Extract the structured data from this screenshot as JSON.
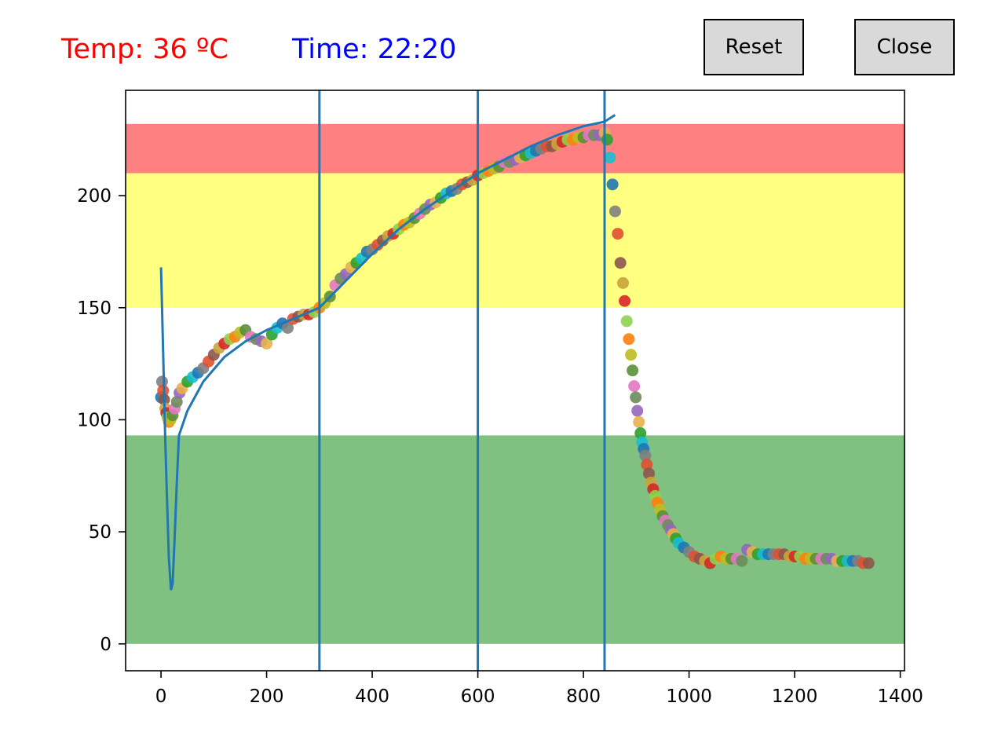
{
  "header": {
    "temp_label": "Temp: 36 ºC",
    "time_label": "Time: 22:20",
    "reset_label": "Reset",
    "close_label": "Close"
  },
  "colors": {
    "temp_text": "#ff0000",
    "time_text": "#0000ff",
    "band_red": "#ff8080",
    "band_yellow": "#ffff80",
    "band_green": "#80c080",
    "line": "#1f77b4"
  },
  "chart_data": {
    "type": "scatter",
    "title": "",
    "xlabel": "",
    "ylabel": "",
    "xlim": [
      -67,
      1408
    ],
    "ylim": [
      -12,
      247
    ],
    "xticks": [
      0,
      200,
      400,
      600,
      800,
      1000,
      1200,
      1400
    ],
    "yticks": [
      0,
      50,
      100,
      150,
      200
    ],
    "grid": false,
    "bands": [
      {
        "name": "red",
        "y0": 210,
        "y1": 232,
        "color": "#ff8080"
      },
      {
        "name": "yellow",
        "y0": 150,
        "y1": 210,
        "color": "#ffff80"
      },
      {
        "name": "green",
        "y0": 0,
        "y1": 93,
        "color": "#80c080"
      }
    ],
    "vlines": [
      300,
      600,
      840
    ],
    "profile_line": [
      [
        0,
        168
      ],
      [
        4,
        130
      ],
      [
        8,
        92
      ],
      [
        12,
        60
      ],
      [
        15,
        38
      ],
      [
        19,
        24
      ],
      [
        22,
        27
      ],
      [
        26,
        48
      ],
      [
        30,
        72
      ],
      [
        34,
        93
      ],
      [
        50,
        104
      ],
      [
        80,
        117
      ],
      [
        120,
        128
      ],
      [
        160,
        135
      ],
      [
        200,
        140
      ],
      [
        250,
        145
      ],
      [
        300,
        150
      ],
      [
        350,
        162
      ],
      [
        400,
        174
      ],
      [
        450,
        185
      ],
      [
        500,
        194
      ],
      [
        550,
        202
      ],
      [
        600,
        210
      ],
      [
        650,
        216
      ],
      [
        700,
        222
      ],
      [
        750,
        227
      ],
      [
        800,
        231
      ],
      [
        840,
        233
      ],
      [
        860,
        236
      ]
    ],
    "scatter_points": [
      [
        0,
        110
      ],
      [
        2,
        117
      ],
      [
        4,
        113
      ],
      [
        6,
        109
      ],
      [
        8,
        105
      ],
      [
        10,
        103
      ],
      [
        12,
        101
      ],
      [
        15,
        99
      ],
      [
        18,
        100
      ],
      [
        22,
        102
      ],
      [
        26,
        105
      ],
      [
        30,
        108
      ],
      [
        35,
        112
      ],
      [
        40,
        114
      ],
      [
        50,
        117
      ],
      [
        60,
        119
      ],
      [
        70,
        121
      ],
      [
        80,
        123
      ],
      [
        90,
        126
      ],
      [
        100,
        129
      ],
      [
        110,
        132
      ],
      [
        120,
        134
      ],
      [
        130,
        136
      ],
      [
        140,
        137
      ],
      [
        150,
        139
      ],
      [
        160,
        140
      ],
      [
        170,
        137
      ],
      [
        180,
        136
      ],
      [
        190,
        135
      ],
      [
        200,
        134
      ],
      [
        210,
        138
      ],
      [
        220,
        141
      ],
      [
        230,
        143
      ],
      [
        240,
        141
      ],
      [
        250,
        145
      ],
      [
        260,
        146
      ],
      [
        270,
        147
      ],
      [
        280,
        147
      ],
      [
        290,
        148
      ],
      [
        300,
        150
      ],
      [
        310,
        152
      ],
      [
        320,
        155
      ],
      [
        330,
        160
      ],
      [
        340,
        163
      ],
      [
        350,
        165
      ],
      [
        360,
        168
      ],
      [
        370,
        170
      ],
      [
        380,
        172
      ],
      [
        390,
        175
      ],
      [
        400,
        176
      ],
      [
        410,
        178
      ],
      [
        420,
        180
      ],
      [
        430,
        182
      ],
      [
        440,
        183
      ],
      [
        450,
        185
      ],
      [
        460,
        187
      ],
      [
        470,
        188
      ],
      [
        480,
        190
      ],
      [
        490,
        192
      ],
      [
        500,
        194
      ],
      [
        510,
        196
      ],
      [
        520,
        197
      ],
      [
        530,
        199
      ],
      [
        540,
        201
      ],
      [
        550,
        202
      ],
      [
        560,
        203
      ],
      [
        570,
        205
      ],
      [
        580,
        206
      ],
      [
        590,
        207
      ],
      [
        600,
        209
      ],
      [
        610,
        210
      ],
      [
        620,
        211
      ],
      [
        630,
        212
      ],
      [
        640,
        213
      ],
      [
        650,
        215
      ],
      [
        660,
        215
      ],
      [
        670,
        216
      ],
      [
        680,
        217
      ],
      [
        690,
        218
      ],
      [
        700,
        219
      ],
      [
        710,
        220
      ],
      [
        720,
        221
      ],
      [
        730,
        222
      ],
      [
        740,
        222
      ],
      [
        750,
        223
      ],
      [
        760,
        224
      ],
      [
        770,
        225
      ],
      [
        780,
        225
      ],
      [
        790,
        226
      ],
      [
        800,
        226
      ],
      [
        810,
        227
      ],
      [
        820,
        227
      ],
      [
        830,
        227
      ],
      [
        840,
        228
      ],
      [
        845,
        225
      ],
      [
        850,
        217
      ],
      [
        855,
        205
      ],
      [
        860,
        193
      ],
      [
        865,
        183
      ],
      [
        870,
        170
      ],
      [
        875,
        161
      ],
      [
        878,
        153
      ],
      [
        882,
        144
      ],
      [
        886,
        136
      ],
      [
        890,
        129
      ],
      [
        893,
        122
      ],
      [
        896,
        115
      ],
      [
        899,
        110
      ],
      [
        902,
        104
      ],
      [
        905,
        99
      ],
      [
        908,
        94
      ],
      [
        911,
        90
      ],
      [
        914,
        87
      ],
      [
        917,
        84
      ],
      [
        920,
        80
      ],
      [
        924,
        76
      ],
      [
        928,
        72
      ],
      [
        932,
        69
      ],
      [
        936,
        66
      ],
      [
        940,
        63
      ],
      [
        945,
        60
      ],
      [
        950,
        57
      ],
      [
        955,
        55
      ],
      [
        960,
        53
      ],
      [
        965,
        51
      ],
      [
        970,
        49
      ],
      [
        975,
        47
      ],
      [
        980,
        45
      ],
      [
        990,
        43
      ],
      [
        1000,
        41
      ],
      [
        1010,
        39
      ],
      [
        1020,
        38
      ],
      [
        1030,
        37
      ],
      [
        1040,
        36
      ],
      [
        1050,
        38
      ],
      [
        1060,
        39
      ],
      [
        1070,
        38
      ],
      [
        1080,
        38
      ],
      [
        1090,
        38
      ],
      [
        1100,
        37
      ],
      [
        1110,
        42
      ],
      [
        1120,
        41
      ],
      [
        1130,
        40
      ],
      [
        1140,
        40
      ],
      [
        1150,
        40
      ],
      [
        1160,
        40
      ],
      [
        1170,
        40
      ],
      [
        1180,
        40
      ],
      [
        1190,
        39
      ],
      [
        1200,
        39
      ],
      [
        1210,
        39
      ],
      [
        1220,
        38
      ],
      [
        1230,
        38
      ],
      [
        1240,
        38
      ],
      [
        1250,
        38
      ],
      [
        1260,
        38
      ],
      [
        1270,
        38
      ],
      [
        1280,
        37
      ],
      [
        1290,
        37
      ],
      [
        1300,
        37
      ],
      [
        1310,
        37
      ],
      [
        1320,
        37
      ],
      [
        1330,
        36
      ],
      [
        1340,
        36
      ]
    ]
  }
}
